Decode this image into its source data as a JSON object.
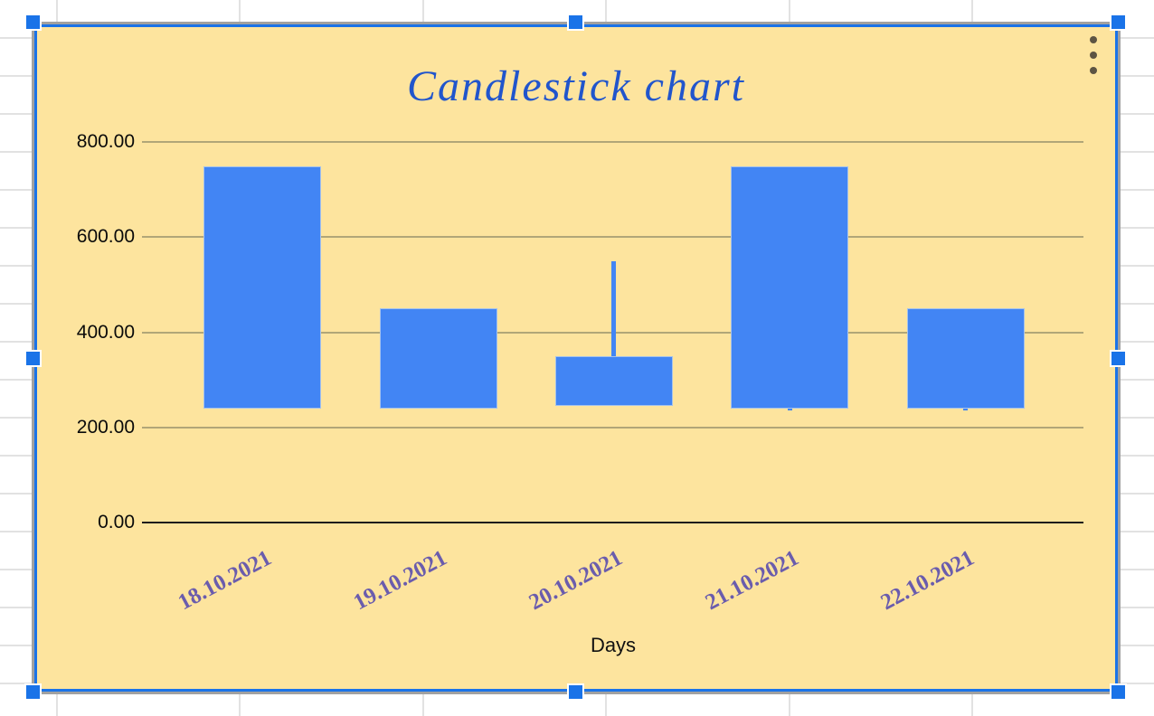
{
  "chart_data": {
    "type": "candlestick",
    "title": "Candlestick chart",
    "xlabel": "Days",
    "categories": [
      "18.10.2021",
      "19.10.2021",
      "20.10.2021",
      "21.10.2021",
      "22.10.2021"
    ],
    "series": [
      {
        "date": "18.10.2021",
        "low": 240,
        "open": 240,
        "close": 750,
        "high": 750
      },
      {
        "date": "19.10.2021",
        "low": 240,
        "open": 240,
        "close": 450,
        "high": 450
      },
      {
        "date": "20.10.2021",
        "low": 245,
        "open": 245,
        "close": 350,
        "high": 550
      },
      {
        "date": "21.10.2021",
        "low": 235,
        "open": 240,
        "close": 750,
        "high": 750
      },
      {
        "date": "22.10.2021",
        "low": 235,
        "open": 240,
        "close": 450,
        "high": 450
      }
    ],
    "y_ticks": [
      {
        "label": "800.00",
        "value": 800
      },
      {
        "label": "600.00",
        "value": 600
      },
      {
        "label": "400.00",
        "value": 400
      },
      {
        "label": "200.00",
        "value": 200
      },
      {
        "label": "0.00",
        "value": 0
      }
    ],
    "ylim": [
      0,
      875
    ],
    "grid": true,
    "legend": "none",
    "colors": {
      "bar": "#4285f4",
      "background": "#fde49e",
      "title": "#2155cc",
      "x_tick": "#6a5cad",
      "y_tick": "#0a0a0a",
      "gridline": "#b1a678",
      "axis": "#1c1c1c"
    }
  },
  "selection": {
    "border_color": "#1a73e8",
    "handle_color": "#1a73e8",
    "handle_positions": [
      "top-left",
      "top-middle",
      "top-right",
      "middle-left",
      "middle-right",
      "bottom-left",
      "bottom-middle",
      "bottom-right"
    ]
  },
  "menu": {
    "icon": "kebab-menu-icon"
  }
}
